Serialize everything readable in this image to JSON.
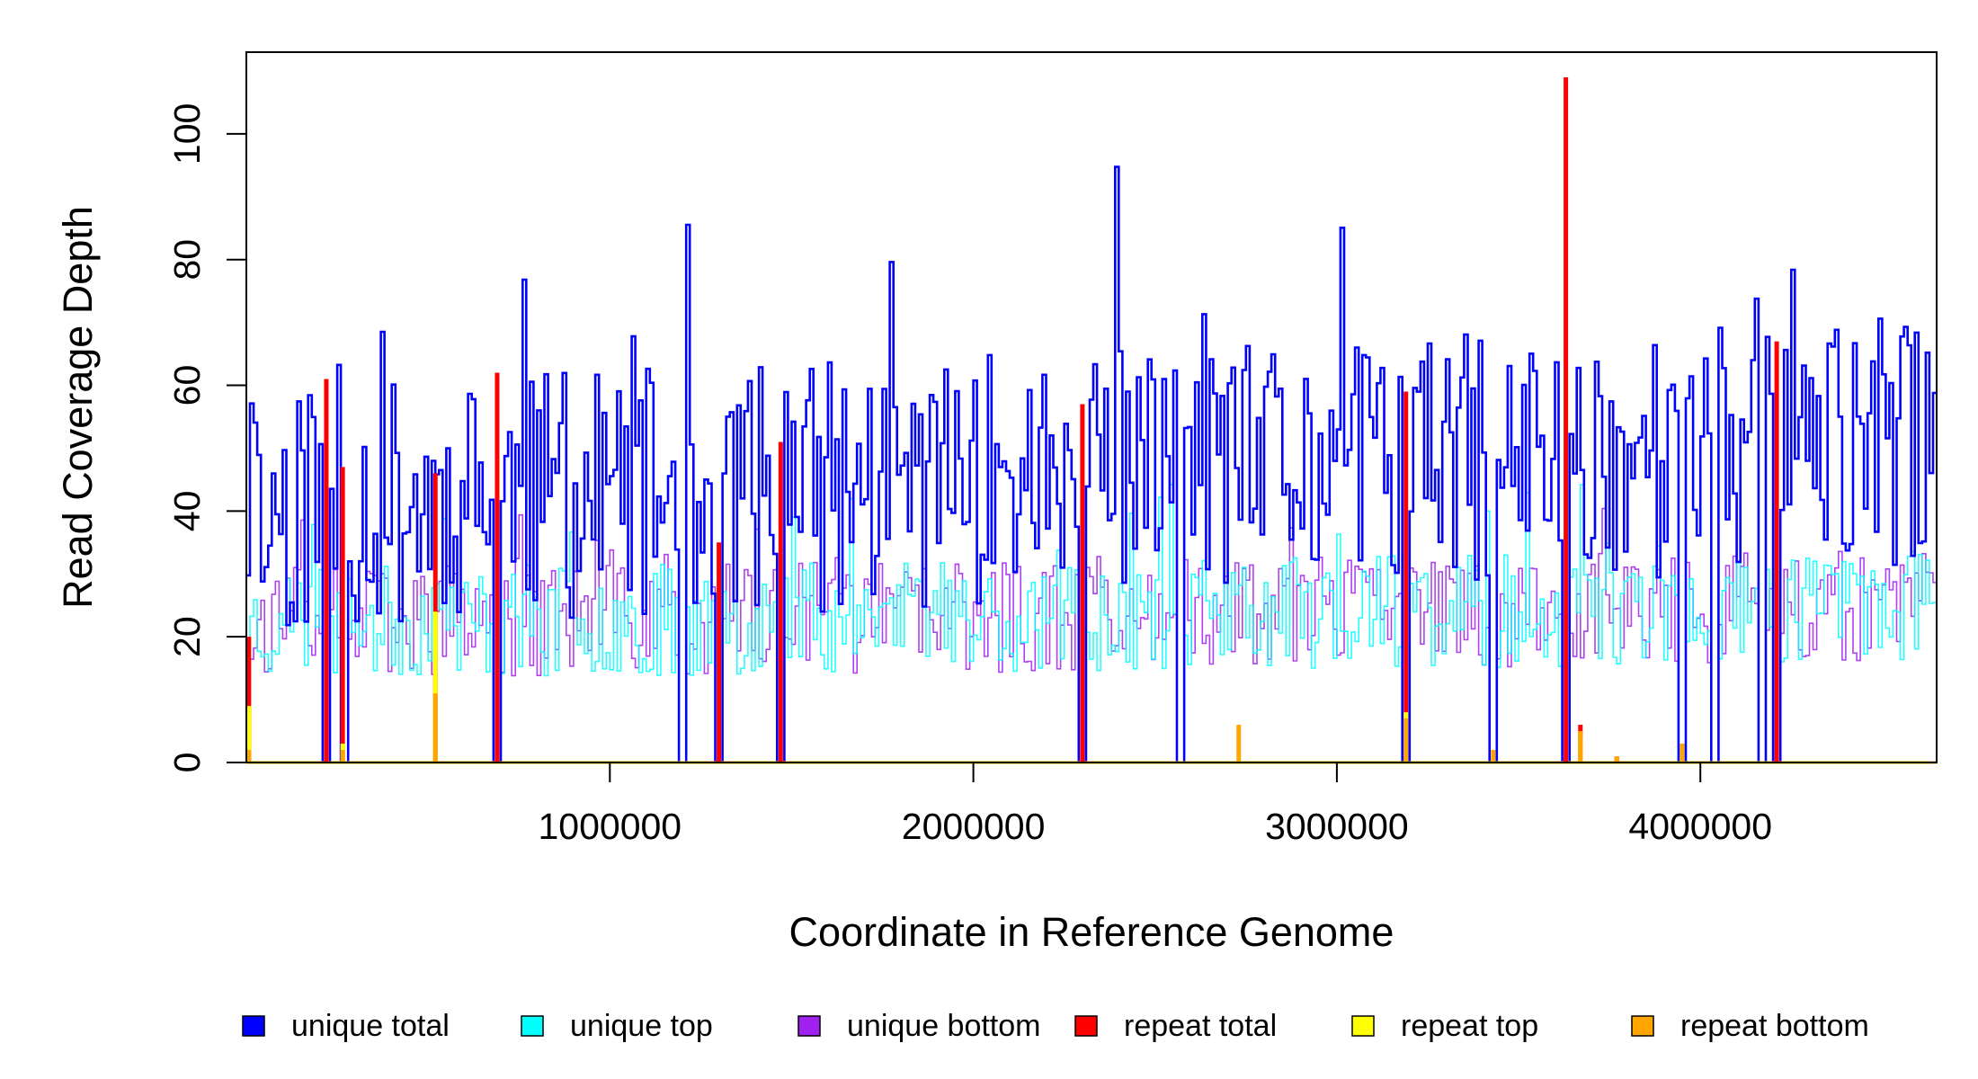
{
  "chart_data": {
    "type": "line",
    "title": "",
    "xlabel": "Coordinate in Reference Genome",
    "ylabel": "Read Coverage Depth",
    "xlim": [
      1,
      4650000
    ],
    "ylim": [
      0,
      113
    ],
    "x_ticks": [
      1000000,
      2000000,
      3000000,
      4000000
    ],
    "x_tick_labels": [
      "1000000",
      "2000000",
      "3000000",
      "4000000"
    ],
    "y_ticks": [
      0,
      20,
      40,
      60,
      80,
      100
    ],
    "y_tick_labels": [
      "0",
      "20",
      "40",
      "60",
      "80",
      "100"
    ],
    "grid": false,
    "legend_position": "bottom",
    "bin_width": 10000,
    "series": [
      {
        "name": "unique total",
        "color": "#0000ff",
        "style": "step",
        "mean": 44,
        "amplitude": 20,
        "trend": 0.25,
        "seed": 11,
        "dropouts_to": 0
      },
      {
        "name": "unique top",
        "color": "#00ffff",
        "style": "step",
        "mean": 23,
        "amplitude": 9,
        "trend": 0.12,
        "seed": 23,
        "dropouts_to": 0
      },
      {
        "name": "unique bottom",
        "color": "#a020f0",
        "style": "step",
        "mean": 23,
        "amplitude": 9,
        "trend": 0.12,
        "seed": 37,
        "dropouts_to": 0
      },
      {
        "name": "repeat total",
        "color": "#ff0000",
        "style": "spikes",
        "points": [
          [
            7000,
            20
          ],
          [
            220000,
            61
          ],
          [
            265000,
            47
          ],
          [
            520000,
            46
          ],
          [
            690000,
            62
          ],
          [
            1300000,
            35
          ],
          [
            1470000,
            51
          ],
          [
            2300000,
            57
          ],
          [
            3190000,
            59
          ],
          [
            3630000,
            109
          ],
          [
            3670000,
            6
          ],
          [
            3770000,
            1
          ],
          [
            4210000,
            67
          ]
        ]
      },
      {
        "name": "repeat top",
        "color": "#ffff00",
        "style": "spikes",
        "points": [
          [
            7000,
            9
          ],
          [
            265000,
            3
          ],
          [
            520000,
            24
          ],
          [
            3190000,
            8
          ],
          [
            3670000,
            4
          ]
        ]
      },
      {
        "name": "repeat bottom",
        "color": "#ffa500",
        "style": "spikes",
        "points": [
          [
            7000,
            2
          ],
          [
            265000,
            2
          ],
          [
            520000,
            11
          ],
          [
            2730000,
            6
          ],
          [
            3190000,
            7
          ],
          [
            3430000,
            2
          ],
          [
            3670000,
            5
          ],
          [
            3770000,
            1
          ],
          [
            3950000,
            3
          ]
        ]
      }
    ],
    "dropout_positions": [
      220000,
      265000,
      690000,
      1200000,
      1300000,
      1470000,
      2300000,
      2570000,
      3190000,
      3430000,
      3630000,
      3950000,
      4040000,
      4170000,
      4210000
    ]
  }
}
